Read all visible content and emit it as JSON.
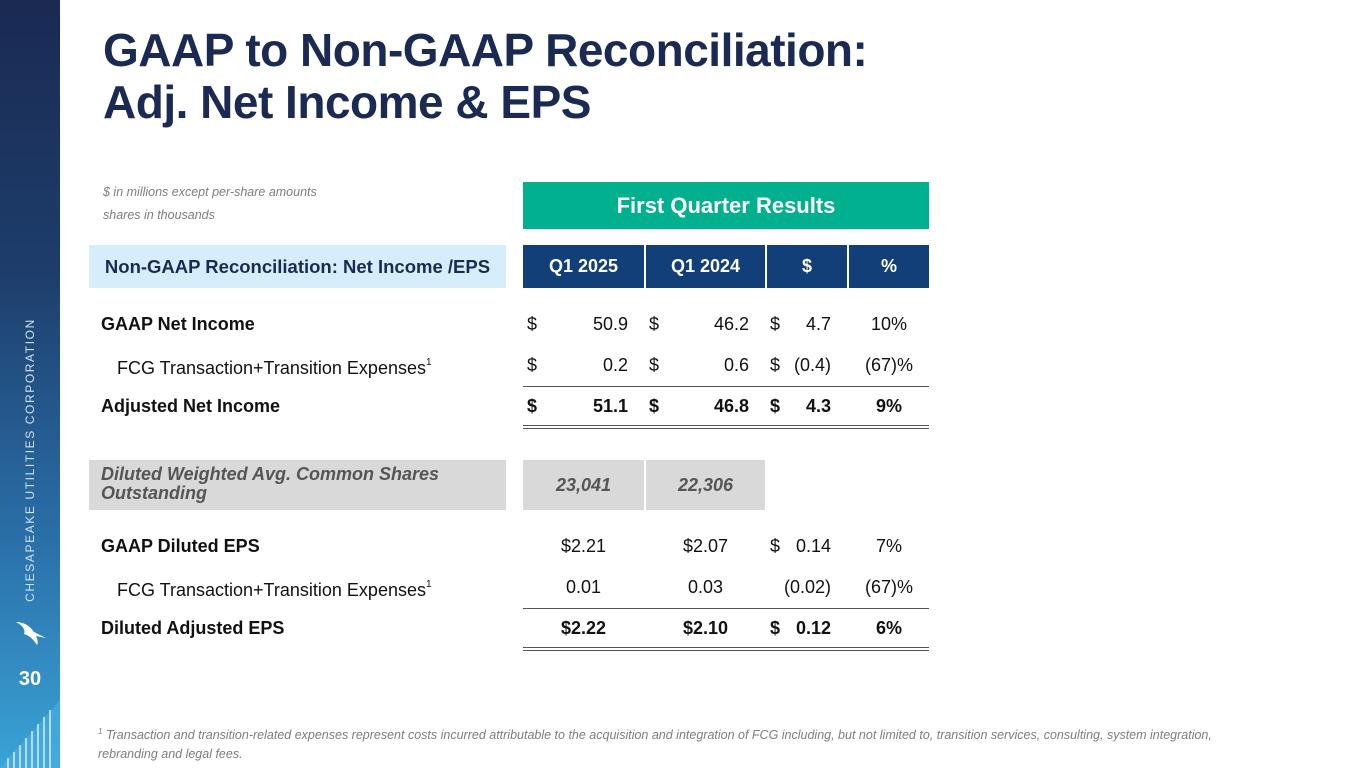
{
  "sidebar": {
    "company": "CHESAPEAKE UTILITIES CORPORATION",
    "page_number": "30",
    "logo_icon": "bird-logo-icon",
    "colors": {
      "top": "#1a2a52",
      "bottom": "#3aa3d6"
    }
  },
  "title": {
    "line1": "GAAP to Non-GAAP Reconciliation:",
    "line2": "Adj. Net Income & EPS"
  },
  "notes": {
    "line1": "$ in millions except per-share amounts",
    "line2": "shares in thousands"
  },
  "banner": "First Quarter Results",
  "section_label": "Non-GAAP Reconciliation: Net Income /EPS",
  "columns": [
    "Q1 2025",
    "Q1 2024",
    "$",
    "%"
  ],
  "net_income": {
    "gaap": {
      "label": "GAAP Net Income",
      "c1": "$",
      "v1": "50.9",
      "c2": "$",
      "v2": "46.2",
      "c3": "$",
      "v3": "4.7",
      "pct": "10%"
    },
    "fcg": {
      "label": "FCG Transaction+Transition Expenses",
      "sup": "1",
      "c1": "$",
      "v1": "0.2",
      "c2": "$",
      "v2": "0.6",
      "c3": "$",
      "v3": "(0.4)",
      "pct": "(67)%"
    },
    "adjusted": {
      "label": "Adjusted Net Income",
      "c1": "$",
      "v1": "51.1",
      "c2": "$",
      "v2": "46.8",
      "c3": "$",
      "v3": "4.3",
      "pct": "9%"
    }
  },
  "shares": {
    "label": "Diluted Weighted Avg. Common Shares Outstanding",
    "q1_2025": "23,041",
    "q1_2024": "22,306"
  },
  "eps": {
    "gaap": {
      "label": "GAAP Diluted EPS",
      "v1": "$2.21",
      "v2": "$2.07",
      "c3": "$",
      "v3": "0.14",
      "pct": "7%"
    },
    "fcg": {
      "label": "FCG Transaction+Transition Expenses",
      "sup": "1",
      "v1": "0.01",
      "v2": "0.03",
      "v3": "(0.02)",
      "pct": "(67)%"
    },
    "adjusted": {
      "label": "Diluted Adjusted EPS",
      "v1": "$2.22",
      "v2": "$2.10",
      "c3": "$",
      "v3": "0.12",
      "pct": "6%"
    }
  },
  "footnote": {
    "marker": "1",
    "text": "Transaction and transition-related expenses represent costs incurred attributable to the acquisition and integration of FCG including, but not limited to, transition services, consulting, system integration, rebranding and legal fees."
  }
}
